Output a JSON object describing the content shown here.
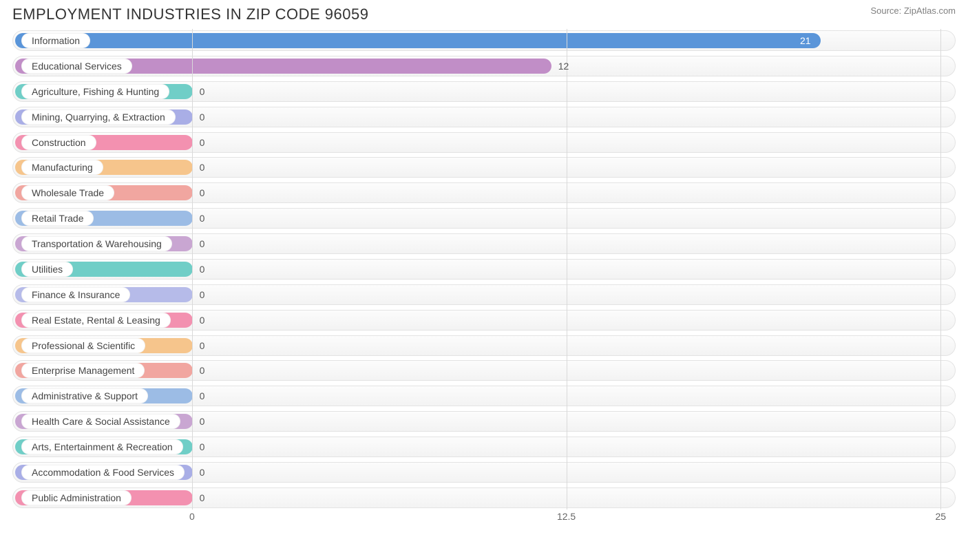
{
  "header": {
    "title": "EMPLOYMENT INDUSTRIES IN ZIP CODE 96059",
    "source": "Source: ZipAtlas.com"
  },
  "chart": {
    "type": "bar-horizontal",
    "background_color": "#ffffff",
    "track_bg_top": "#fcfcfc",
    "track_bg_bottom": "#f3f3f3",
    "track_border": "#e3e3e3",
    "grid_color": "#d9d9d9",
    "text_color": "#555555",
    "label_fontsize": 14,
    "title_fontsize": 22,
    "x_min": -6,
    "x_max": 25.5,
    "x_ticks": [
      0,
      12.5,
      25
    ],
    "x_tick_labels": [
      "0",
      "12.5",
      "25"
    ],
    "min_fill_value": -0.3,
    "bars": [
      {
        "label": "Information",
        "value": 21,
        "color": "#5a95d9",
        "value_inside": true,
        "value_color": "#ffffff"
      },
      {
        "label": "Educational Services",
        "value": 12,
        "color": "#c18ec7",
        "value_inside": false,
        "value_color": "#555555"
      },
      {
        "label": "Agriculture, Fishing & Hunting",
        "value": 0,
        "color": "#70cec7",
        "value_inside": false,
        "value_color": "#555555"
      },
      {
        "label": "Mining, Quarrying, & Extraction",
        "value": 0,
        "color": "#a9aee6",
        "value_inside": false,
        "value_color": "#555555"
      },
      {
        "label": "Construction",
        "value": 0,
        "color": "#f391b0",
        "value_inside": false,
        "value_color": "#555555"
      },
      {
        "label": "Manufacturing",
        "value": 0,
        "color": "#f6c58c",
        "value_inside": false,
        "value_color": "#555555"
      },
      {
        "label": "Wholesale Trade",
        "value": 0,
        "color": "#f1a6a0",
        "value_inside": false,
        "value_color": "#555555"
      },
      {
        "label": "Retail Trade",
        "value": 0,
        "color": "#9cbce5",
        "value_inside": false,
        "value_color": "#555555"
      },
      {
        "label": "Transportation & Warehousing",
        "value": 0,
        "color": "#c9a6d2",
        "value_inside": false,
        "value_color": "#555555"
      },
      {
        "label": "Utilities",
        "value": 0,
        "color": "#70cec7",
        "value_inside": false,
        "value_color": "#555555"
      },
      {
        "label": "Finance & Insurance",
        "value": 0,
        "color": "#b6bbe9",
        "value_inside": false,
        "value_color": "#555555"
      },
      {
        "label": "Real Estate, Rental & Leasing",
        "value": 0,
        "color": "#f391b0",
        "value_inside": false,
        "value_color": "#555555"
      },
      {
        "label": "Professional & Scientific",
        "value": 0,
        "color": "#f6c58c",
        "value_inside": false,
        "value_color": "#555555"
      },
      {
        "label": "Enterprise Management",
        "value": 0,
        "color": "#f1a6a0",
        "value_inside": false,
        "value_color": "#555555"
      },
      {
        "label": "Administrative & Support",
        "value": 0,
        "color": "#9cbce5",
        "value_inside": false,
        "value_color": "#555555"
      },
      {
        "label": "Health Care & Social Assistance",
        "value": 0,
        "color": "#c9a6d2",
        "value_inside": false,
        "value_color": "#555555"
      },
      {
        "label": "Arts, Entertainment & Recreation",
        "value": 0,
        "color": "#70cec7",
        "value_inside": false,
        "value_color": "#555555"
      },
      {
        "label": "Accommodation & Food Services",
        "value": 0,
        "color": "#a9aee6",
        "value_inside": false,
        "value_color": "#555555"
      },
      {
        "label": "Public Administration",
        "value": 0,
        "color": "#f391b0",
        "value_inside": false,
        "value_color": "#555555"
      }
    ]
  }
}
